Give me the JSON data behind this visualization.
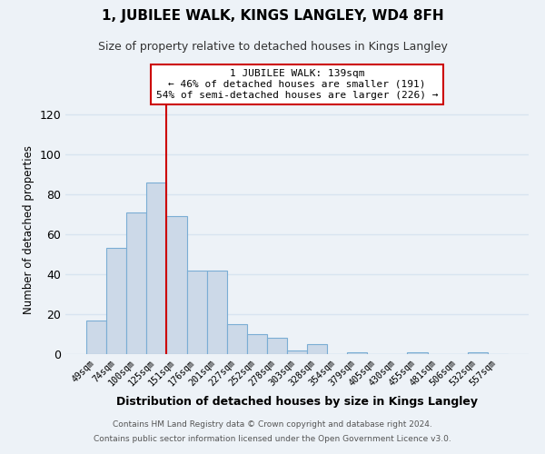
{
  "title": "1, JUBILEE WALK, KINGS LANGLEY, WD4 8FH",
  "subtitle": "Size of property relative to detached houses in Kings Langley",
  "xlabel": "Distribution of detached houses by size in Kings Langley",
  "ylabel": "Number of detached properties",
  "bar_labels": [
    "49sqm",
    "74sqm",
    "100sqm",
    "125sqm",
    "151sqm",
    "176sqm",
    "201sqm",
    "227sqm",
    "252sqm",
    "278sqm",
    "303sqm",
    "328sqm",
    "354sqm",
    "379sqm",
    "405sqm",
    "430sqm",
    "455sqm",
    "481sqm",
    "506sqm",
    "532sqm",
    "557sqm"
  ],
  "bar_values": [
    17,
    53,
    71,
    86,
    69,
    42,
    42,
    15,
    10,
    8,
    2,
    5,
    0,
    1,
    0,
    0,
    1,
    0,
    0,
    1,
    0
  ],
  "bar_color": "#ccd9e8",
  "bar_edge_color": "#7aadd4",
  "vline_color": "#cc0000",
  "annotation_line1": "1 JUBILEE WALK: 139sqm",
  "annotation_line2": "← 46% of detached houses are smaller (191)",
  "annotation_line3": "54% of semi-detached houses are larger (226) →",
  "annotation_box_edge": "#cc0000",
  "ylim": [
    0,
    125
  ],
  "yticks": [
    0,
    20,
    40,
    60,
    80,
    100,
    120
  ],
  "footer1": "Contains HM Land Registry data © Crown copyright and database right 2024.",
  "footer2": "Contains public sector information licensed under the Open Government Licence v3.0.",
  "background_color": "#edf2f7",
  "grid_color": "#d8e4f0"
}
